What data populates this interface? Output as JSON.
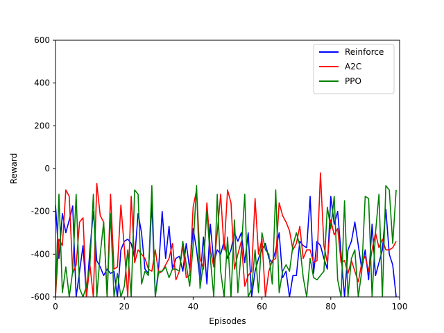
{
  "chart_data": {
    "type": "line",
    "title": "",
    "xlabel": "Episodes",
    "ylabel": "Reward",
    "xlim": [
      0,
      100
    ],
    "ylim": [
      -600,
      600
    ],
    "xticks": [
      0,
      20,
      40,
      60,
      80,
      100
    ],
    "yticks": [
      -600,
      -400,
      -200,
      0,
      200,
      400,
      600
    ],
    "grid": false,
    "legend_position": "top-right",
    "x": [
      0,
      1,
      2,
      3,
      4,
      5,
      6,
      7,
      8,
      9,
      10,
      11,
      12,
      13,
      14,
      15,
      16,
      17,
      18,
      19,
      20,
      21,
      22,
      23,
      24,
      25,
      26,
      27,
      28,
      29,
      30,
      31,
      32,
      33,
      34,
      35,
      36,
      37,
      38,
      39,
      40,
      41,
      42,
      43,
      44,
      45,
      46,
      47,
      48,
      49,
      50,
      51,
      52,
      53,
      54,
      55,
      56,
      57,
      58,
      59,
      60,
      61,
      62,
      63,
      64,
      65,
      66,
      67,
      68,
      69,
      70,
      71,
      72,
      73,
      74,
      75,
      76,
      77,
      78,
      79,
      80,
      81,
      82,
      83,
      84,
      85,
      86,
      87,
      88,
      89,
      90,
      91,
      92,
      93,
      94,
      95,
      96,
      97,
      98,
      99
    ],
    "series": [
      {
        "name": "Reinforce",
        "color": "#0000ff",
        "values": [
          -170,
          -420,
          -210,
          -300,
          -240,
          -175,
          -600,
          -480,
          -360,
          -600,
          -380,
          -200,
          -430,
          -460,
          -500,
          -470,
          -490,
          -480,
          -600,
          -380,
          -340,
          -330,
          -350,
          -420,
          -210,
          -300,
          -470,
          -490,
          -160,
          -600,
          -460,
          -200,
          -420,
          -270,
          -470,
          -420,
          -410,
          -480,
          -350,
          -470,
          -280,
          -380,
          -520,
          -320,
          -540,
          -260,
          -440,
          -380,
          -400,
          -340,
          -420,
          -380,
          -300,
          -340,
          -300,
          -440,
          -300,
          -600,
          -480,
          -420,
          -380,
          -350,
          -420,
          -440,
          -380,
          -300,
          -510,
          -480,
          -600,
          -500,
          -500,
          -340,
          -360,
          -370,
          -130,
          -490,
          -340,
          -360,
          -420,
          -470,
          -130,
          -260,
          -200,
          -400,
          -600,
          -380,
          -340,
          -250,
          -360,
          -470,
          -380,
          -520,
          -260,
          -500,
          -440,
          -380,
          -190,
          -400,
          -450,
          -600
        ]
      },
      {
        "name": "A2C",
        "color": "#ff0000",
        "values": [
          -600,
          -330,
          -360,
          -100,
          -130,
          -490,
          -450,
          -250,
          -230,
          -600,
          -450,
          -600,
          -70,
          -220,
          -250,
          -600,
          -120,
          -470,
          -460,
          -170,
          -370,
          -600,
          -130,
          -440,
          -380,
          -400,
          -420,
          -470,
          -480,
          -380,
          -490,
          -480,
          -450,
          -420,
          -350,
          -520,
          -480,
          -360,
          -510,
          -500,
          -180,
          -100,
          -420,
          -470,
          -160,
          -380,
          -460,
          -300,
          -120,
          -380,
          -100,
          -160,
          -470,
          -400,
          -340,
          -550,
          -500,
          -480,
          -140,
          -400,
          -330,
          -600,
          -480,
          -430,
          -420,
          -160,
          -220,
          -250,
          -290,
          -380,
          -350,
          -270,
          -420,
          -380,
          -380,
          -440,
          -430,
          -20,
          -360,
          -440,
          -240,
          -310,
          -280,
          -440,
          -430,
          -490,
          -430,
          -480,
          -530,
          -440,
          -410,
          -480,
          -380,
          -300,
          -370,
          -330,
          -380,
          -380,
          -370,
          -340
        ]
      },
      {
        "name": "PPO",
        "color": "#008000",
        "values": [
          -600,
          -120,
          -580,
          -460,
          -600,
          -480,
          -120,
          -560,
          -600,
          -550,
          -450,
          -120,
          -600,
          -400,
          -250,
          -600,
          -210,
          -600,
          -490,
          -600,
          -550,
          -380,
          -600,
          -100,
          -120,
          -540,
          -480,
          -500,
          -80,
          -600,
          -480,
          -480,
          -460,
          -510,
          -470,
          -470,
          -480,
          -340,
          -450,
          -550,
          -360,
          -80,
          -560,
          -440,
          -200,
          -420,
          -600,
          -120,
          -480,
          -600,
          -320,
          -600,
          -240,
          -580,
          -380,
          -120,
          -600,
          -560,
          -380,
          -580,
          -300,
          -380,
          -400,
          -540,
          -100,
          -580,
          -480,
          -450,
          -480,
          -360,
          -300,
          -360,
          -510,
          -600,
          -420,
          -510,
          -520,
          -500,
          -480,
          -180,
          -280,
          -130,
          -520,
          -600,
          -150,
          -600,
          -420,
          -380,
          -600,
          -480,
          -130,
          -140,
          -600,
          -300,
          -120,
          -600,
          -80,
          -100,
          -350,
          -100
        ]
      }
    ]
  }
}
